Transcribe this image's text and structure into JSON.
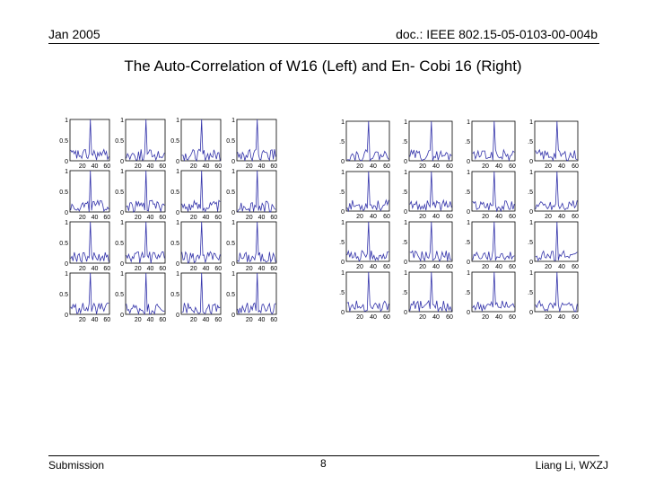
{
  "header": {
    "date": "Jan 2005",
    "doc_id": "doc.: IEEE 802.15-05-0103-00-004b"
  },
  "slide": {
    "title": "The Auto-Correlation of W16 (Left) and En- Cobi 16 (Right)"
  },
  "footer": {
    "left": "Submission",
    "page_number": "8",
    "author": "Liang Li, WXZJ"
  },
  "chart_data": [
    {
      "type": "line",
      "grid": {
        "rows": 4,
        "cols": 4
      },
      "series_color": "#3333aa",
      "ylim": [
        0,
        1
      ],
      "xlim": [
        0,
        64
      ],
      "y_ticks": [
        "0",
        "0.5",
        "1"
      ],
      "x_ticks": [
        "20",
        "40",
        "60"
      ]
    },
    {
      "type": "line",
      "grid": {
        "rows": 4,
        "cols": 4
      },
      "series_color": "#3333aa",
      "ylim": [
        0,
        1
      ],
      "xlim": [
        0,
        64
      ],
      "y_ticks": [
        "0",
        ".5",
        "1"
      ],
      "x_ticks": [
        "20",
        "40",
        "60"
      ]
    }
  ]
}
